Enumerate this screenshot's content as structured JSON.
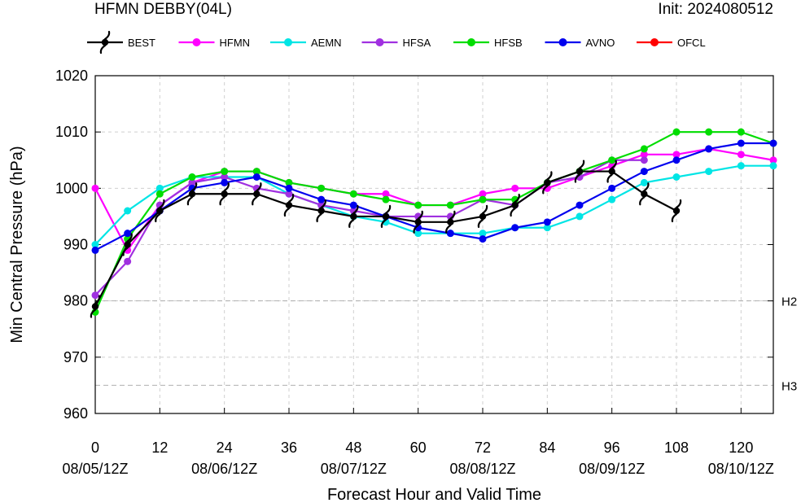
{
  "header": {
    "title_left": "HFMN DEBBY(04L)",
    "title_right": "Init: 2024080512"
  },
  "chart_data": {
    "type": "line",
    "xlabel": "Forecast Hour and Valid Time",
    "ylabel": "Min Central Pressure (hPa)",
    "xlim": [
      0,
      126
    ],
    "ylim": [
      960,
      1020
    ],
    "grid": true,
    "legend_position": "top",
    "x_ticks": [
      0,
      12,
      24,
      36,
      48,
      60,
      72,
      84,
      96,
      108,
      120
    ],
    "x_tick_labels": [
      "0",
      "12",
      "24",
      "36",
      "48",
      "60",
      "72",
      "84",
      "96",
      "108",
      "120"
    ],
    "date_ticks": [
      0,
      24,
      48,
      72,
      96,
      120
    ],
    "date_tick_labels": [
      "08/05/12Z",
      "08/06/12Z",
      "08/07/12Z",
      "08/08/12Z",
      "08/09/12Z",
      "08/10/12Z"
    ],
    "y_ticks": [
      960,
      970,
      980,
      990,
      1000,
      1010,
      1020
    ],
    "y_tick_labels": [
      "960",
      "970",
      "980",
      "990",
      "1000",
      "1010",
      "1020"
    ],
    "reference_lines": [
      {
        "label": "H2",
        "value": 980
      },
      {
        "label": "H3",
        "value": 965
      }
    ],
    "series": [
      {
        "name": "BEST",
        "color": "#000000",
        "marker": "hurricane-symbol",
        "x": [
          0,
          6,
          12,
          18,
          24,
          30,
          36,
          42,
          48,
          54,
          60,
          66,
          72,
          78,
          84,
          90,
          96,
          102,
          108
        ],
        "values": [
          979,
          990,
          996,
          999,
          999,
          999,
          997,
          996,
          995,
          995,
          994,
          994,
          995,
          997,
          1001,
          1003,
          1003,
          999,
          996
        ]
      },
      {
        "name": "HFMN",
        "color": "#ff00ff",
        "marker": "circle",
        "x": [
          0,
          6,
          12,
          18,
          24,
          30,
          36,
          42,
          48,
          54,
          60,
          66,
          72,
          78,
          84,
          90,
          96,
          102,
          108,
          114,
          120,
          126
        ],
        "values": [
          1000,
          989,
          997,
          1001,
          1003,
          1003,
          1001,
          1000,
          999,
          999,
          997,
          997,
          999,
          1000,
          1000,
          1002,
          1004,
          1006,
          1006,
          1007,
          1006,
          1005
        ]
      },
      {
        "name": "AEMN",
        "color": "#00e5e5",
        "marker": "circle",
        "x": [
          0,
          6,
          12,
          18,
          24,
          30,
          36,
          42,
          48,
          54,
          60,
          66,
          72,
          78,
          84,
          90,
          96,
          102,
          108,
          114,
          120,
          126
        ],
        "values": [
          990,
          996,
          1000,
          1002,
          1002,
          1002,
          999,
          997,
          995,
          994,
          992,
          992,
          992,
          993,
          993,
          995,
          998,
          1001,
          1002,
          1003,
          1004,
          1004
        ]
      },
      {
        "name": "HFSA",
        "color": "#a030e0",
        "marker": "circle",
        "x": [
          0,
          6,
          12,
          18,
          24,
          30,
          36,
          42,
          48,
          54,
          60,
          66,
          72,
          78,
          84,
          90,
          96,
          102
        ],
        "values": [
          981,
          987,
          997,
          1001,
          1002,
          1000,
          999,
          997,
          996,
          995,
          995,
          995,
          998,
          997,
          1001,
          1002,
          1005,
          1005
        ]
      },
      {
        "name": "HFSB",
        "color": "#00dd00",
        "marker": "circle",
        "x": [
          0,
          6,
          12,
          18,
          24,
          30,
          36,
          42,
          48,
          54,
          60,
          66,
          72,
          78,
          84,
          90,
          96,
          102,
          108,
          114,
          120,
          126
        ],
        "values": [
          978,
          991,
          999,
          1002,
          1003,
          1003,
          1001,
          1000,
          999,
          998,
          997,
          997,
          998,
          998,
          1001,
          1003,
          1005,
          1007,
          1010,
          1010,
          1010,
          1008
        ]
      },
      {
        "name": "AVNO",
        "color": "#0000ee",
        "marker": "circle",
        "x": [
          0,
          6,
          12,
          18,
          24,
          30,
          36,
          42,
          48,
          54,
          60,
          66,
          72,
          78,
          84,
          90,
          96,
          102,
          108,
          114,
          120,
          126
        ],
        "values": [
          989,
          992,
          996,
          1000,
          1001,
          1002,
          1000,
          998,
          997,
          995,
          993,
          992,
          991,
          993,
          994,
          997,
          1000,
          1003,
          1005,
          1007,
          1008,
          1008
        ]
      },
      {
        "name": "OFCL",
        "color": "#ff0000",
        "marker": "circle",
        "x": [],
        "values": []
      }
    ]
  }
}
